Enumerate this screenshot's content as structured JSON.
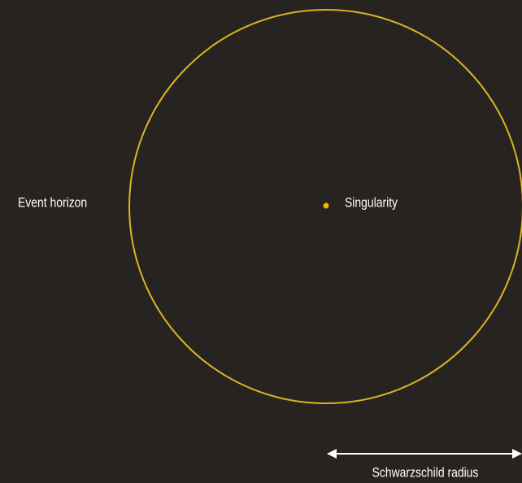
{
  "labels": {
    "event_horizon": "Event horizon",
    "singularity": "Singularity",
    "schwarzschild_radius": "Schwarzschild radius"
  }
}
